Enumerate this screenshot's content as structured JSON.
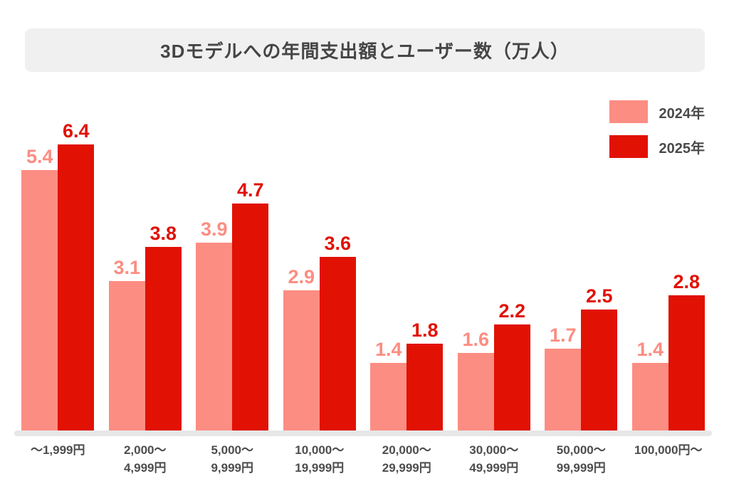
{
  "title": "3Dモデルへの年間支出額とユーザー数（万人）",
  "colors": {
    "series_2024": "#fc8d82",
    "series_2025": "#e11104",
    "title_bg": "#f0f0f0",
    "title_text": "#454545",
    "tick_text": "#4d4d4d",
    "axis_line": "#e7e7e7"
  },
  "legend": {
    "position": "top-right",
    "items": [
      {
        "label": "2024年",
        "color": "#fc8d82"
      },
      {
        "label": "2025年",
        "color": "#e11104"
      }
    ]
  },
  "chart_data": {
    "type": "bar",
    "title": "3Dモデルへの年間支出額とユーザー数（万人）",
    "categories": [
      "～1,999円",
      "2,000～\n4,999円",
      "5,000～\n9,999円",
      "10,000～\n19,999円",
      "20,000～\n29,999円",
      "30,000～\n49,999円",
      "50,000～\n99,999円",
      "100,000円～"
    ],
    "series": [
      {
        "name": "2024年",
        "color": "#fc8d82",
        "values": [
          5.4,
          3.1,
          3.9,
          2.9,
          1.4,
          1.6,
          1.7,
          1.4
        ]
      },
      {
        "name": "2025年",
        "color": "#e11104",
        "values": [
          6.4,
          3.8,
          4.7,
          3.6,
          1.8,
          2.2,
          2.5,
          2.8
        ]
      }
    ],
    "ylim": [
      0,
      6.4
    ],
    "xlabel": "",
    "ylabel": "",
    "grid": false,
    "value_labels": true,
    "legend_position": "top-right"
  }
}
